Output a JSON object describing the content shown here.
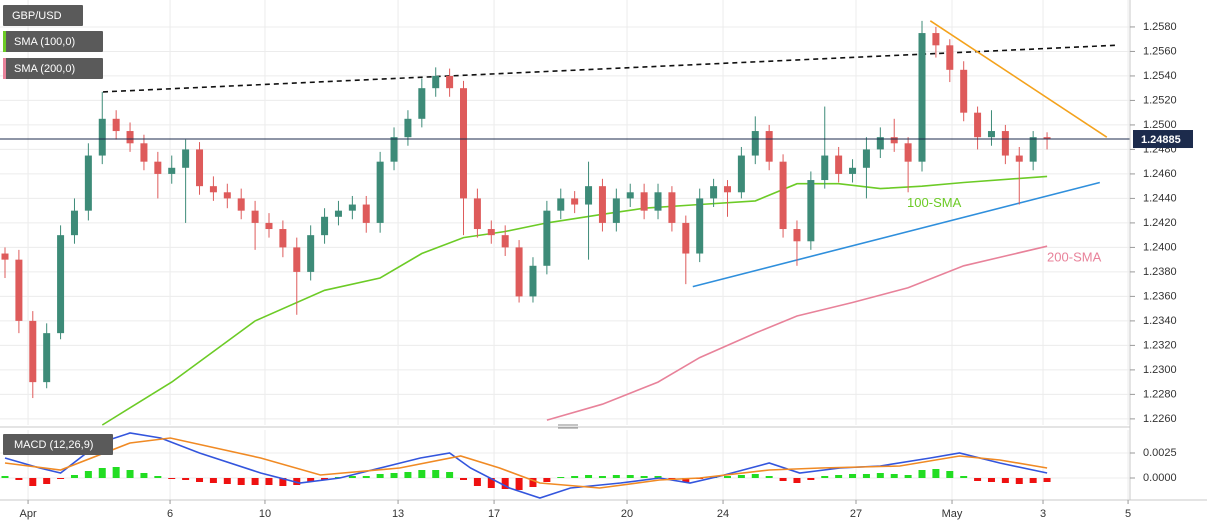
{
  "chart_data": [
    {
      "type": "candlestick",
      "name": "GBP/USD",
      "x": [
        0,
        1,
        2,
        3,
        4,
        5,
        6,
        7,
        8,
        9,
        10,
        11,
        12,
        13,
        14,
        15,
        16,
        17,
        18,
        19,
        20,
        21,
        22,
        23,
        24,
        25,
        26,
        27,
        28,
        29,
        30,
        31,
        32,
        33,
        34,
        35,
        36,
        37,
        38,
        39,
        40,
        41,
        42,
        43,
        44,
        45,
        46,
        47,
        48,
        49,
        50,
        51,
        52,
        53,
        54,
        55,
        56,
        57,
        58,
        59,
        60,
        61,
        62,
        63,
        64,
        65,
        66,
        67,
        68,
        69,
        70,
        71,
        72,
        73,
        74,
        75
      ],
      "open": [
        1.2395,
        1.239,
        1.234,
        1.229,
        1.233,
        1.241,
        1.243,
        1.2475,
        1.2505,
        1.2495,
        1.2485,
        1.247,
        1.246,
        1.2465,
        1.248,
        1.245,
        1.2445,
        1.244,
        1.243,
        1.242,
        1.2415,
        1.24,
        1.238,
        1.241,
        1.2425,
        1.243,
        1.2435,
        1.242,
        1.247,
        1.249,
        1.2505,
        1.253,
        1.254,
        1.253,
        1.244,
        1.2415,
        1.241,
        1.24,
        1.236,
        1.2385,
        1.243,
        1.244,
        1.2435,
        1.245,
        1.242,
        1.244,
        1.2445,
        1.243,
        1.2445,
        1.242,
        1.2395,
        1.244,
        1.245,
        1.2445,
        1.2475,
        1.2495,
        1.247,
        1.2415,
        1.2405,
        1.2455,
        1.2475,
        1.246,
        1.2465,
        1.248,
        1.249,
        1.2485,
        1.247,
        1.2575,
        1.2565,
        1.2545,
        1.251,
        1.249,
        1.2495,
        1.2475,
        1.247,
        1.249
      ],
      "high": [
        1.24,
        1.2398,
        1.2348,
        1.2338,
        1.2418,
        1.244,
        1.2485,
        1.2527,
        1.2512,
        1.2502,
        1.2492,
        1.2478,
        1.2475,
        1.2488,
        1.2486,
        1.2458,
        1.2452,
        1.2448,
        1.2438,
        1.2428,
        1.2422,
        1.2408,
        1.2418,
        1.2432,
        1.2438,
        1.2442,
        1.2442,
        1.2478,
        1.2498,
        1.2512,
        1.2538,
        1.2547,
        1.2546,
        1.2536,
        1.2448,
        1.2422,
        1.2418,
        1.2406,
        1.2392,
        1.2438,
        1.2448,
        1.2446,
        1.247,
        1.2456,
        1.2448,
        1.2452,
        1.2452,
        1.2452,
        1.245,
        1.2426,
        1.2448,
        1.2456,
        1.2455,
        1.2482,
        1.2507,
        1.25,
        1.2476,
        1.2422,
        1.2462,
        1.2515,
        1.2482,
        1.2472,
        1.249,
        1.2498,
        1.2505,
        1.249,
        1.2585,
        1.258,
        1.257,
        1.2552,
        1.2515,
        1.2512,
        1.25,
        1.2482,
        1.2495,
        1.2494
      ],
      "low": [
        1.2375,
        1.233,
        1.2277,
        1.2285,
        1.2325,
        1.2403,
        1.2422,
        1.2468,
        1.2488,
        1.2478,
        1.2463,
        1.244,
        1.2452,
        1.242,
        1.2443,
        1.2438,
        1.2432,
        1.2423,
        1.2398,
        1.2408,
        1.2392,
        1.2345,
        1.2373,
        1.2403,
        1.2418,
        1.2423,
        1.2412,
        1.2412,
        1.2463,
        1.2483,
        1.2498,
        1.2523,
        1.2523,
        1.241,
        1.2408,
        1.2403,
        1.2393,
        1.2355,
        1.2355,
        1.2378,
        1.2423,
        1.2428,
        1.239,
        1.2413,
        1.2413,
        1.2433,
        1.2423,
        1.2423,
        1.2413,
        1.237,
        1.2388,
        1.2433,
        1.2425,
        1.244,
        1.2468,
        1.2463,
        1.2408,
        1.2385,
        1.2398,
        1.2448,
        1.2453,
        1.2453,
        1.244,
        1.2473,
        1.2478,
        1.2445,
        1.2462,
        1.2555,
        1.2535,
        1.2503,
        1.248,
        1.2483,
        1.2468,
        1.2435,
        1.2463,
        1.248
      ],
      "close": [
        1.239,
        1.234,
        1.229,
        1.233,
        1.241,
        1.243,
        1.2475,
        1.2505,
        1.2495,
        1.2485,
        1.247,
        1.246,
        1.2465,
        1.248,
        1.245,
        1.2445,
        1.244,
        1.243,
        1.242,
        1.2415,
        1.24,
        1.238,
        1.241,
        1.2425,
        1.243,
        1.2435,
        1.242,
        1.247,
        1.249,
        1.2505,
        1.253,
        1.254,
        1.253,
        1.244,
        1.2415,
        1.241,
        1.24,
        1.236,
        1.2385,
        1.243,
        1.244,
        1.2435,
        1.245,
        1.242,
        1.244,
        1.2445,
        1.243,
        1.2445,
        1.242,
        1.2395,
        1.244,
        1.245,
        1.2445,
        1.2475,
        1.2495,
        1.247,
        1.2415,
        1.2405,
        1.2455,
        1.2475,
        1.246,
        1.2465,
        1.248,
        1.249,
        1.2485,
        1.247,
        1.2575,
        1.2565,
        1.2545,
        1.251,
        1.249,
        1.2495,
        1.2475,
        1.247,
        1.249,
        1.24885
      ],
      "up_color": "#3d8b78",
      "down_color": "#de5b5b",
      "series": [
        {
          "name": "SMA (100,0)",
          "label": "100-SMA",
          "color": "#6ccb26",
          "x": [
            7,
            12,
            18,
            23,
            27,
            30,
            33,
            36,
            39,
            43,
            46,
            50,
            54,
            57,
            60,
            63,
            66,
            69,
            75
          ],
          "values": [
            1.2255,
            1.229,
            1.234,
            1.2365,
            1.2375,
            1.2395,
            1.2408,
            1.2413,
            1.242,
            1.2427,
            1.2432,
            1.2435,
            1.2438,
            1.2452,
            1.2452,
            1.2448,
            1.245,
            1.2453,
            1.2458
          ]
        },
        {
          "name": "SMA (200,0)",
          "label": "200-SMA",
          "color": "#e8829a",
          "x": [
            39,
            43,
            47,
            50,
            54,
            57,
            61,
            65,
            69,
            72,
            75
          ],
          "values": [
            1.2259,
            1.2272,
            1.229,
            1.231,
            1.233,
            1.2344,
            1.2355,
            1.2367,
            1.2385,
            1.2393,
            1.2401
          ]
        }
      ],
      "trendlines": [
        {
          "color": "#111111",
          "dash": true,
          "x": [
            7.05,
            79.9
          ],
          "values": [
            1.2527,
            1.2565
          ]
        },
        {
          "color": "#f4a21c",
          "dash": false,
          "x": [
            66.6,
            79.3
          ],
          "values": [
            1.2585,
            1.249
          ]
        },
        {
          "color": "#2f8fdc",
          "dash": false,
          "x": [
            49.5,
            78.8
          ],
          "values": [
            1.2368,
            1.2453
          ]
        }
      ],
      "last_price": 1.24885,
      "last_color": "#1c2b4c",
      "xlim": [
        -0.36,
        80.97
      ],
      "xticks": [
        {
          "value": 1.66,
          "label": "Apr"
        },
        {
          "value": 11.88,
          "label": "6"
        },
        {
          "value": 18.71,
          "label": "10"
        },
        {
          "value": 28.29,
          "label": "13"
        },
        {
          "value": 35.2,
          "label": "17"
        },
        {
          "value": 44.77,
          "label": "20"
        },
        {
          "value": 51.68,
          "label": "24"
        },
        {
          "value": 61.25,
          "label": "27"
        },
        {
          "value": 68.16,
          "label": "May"
        },
        {
          "value": 74.71,
          "label": "3"
        },
        {
          "value": 80.83,
          "label": "5"
        }
      ],
      "ylim": [
        1.2255,
        1.2602
      ],
      "yticks": [
        {
          "value": 1.226,
          "label": "1.2260"
        },
        {
          "value": 1.228,
          "label": "1.2280"
        },
        {
          "value": 1.23,
          "label": "1.2300"
        },
        {
          "value": 1.232,
          "label": "1.2320"
        },
        {
          "value": 1.234,
          "label": "1.2340"
        },
        {
          "value": 1.236,
          "label": "1.2360"
        },
        {
          "value": 1.238,
          "label": "1.2380"
        },
        {
          "value": 1.24,
          "label": "1.2400"
        },
        {
          "value": 1.242,
          "label": "1.2420"
        },
        {
          "value": 1.244,
          "label": "1.2440"
        },
        {
          "value": 1.246,
          "label": "1.2460"
        },
        {
          "value": 1.248,
          "label": "1.2480"
        },
        {
          "value": 1.25,
          "label": "1.2500"
        },
        {
          "value": 1.252,
          "label": "1.2520"
        },
        {
          "value": 1.254,
          "label": "1.2540"
        },
        {
          "value": 1.256,
          "label": "1.2560"
        },
        {
          "value": 1.258,
          "label": "1.2580"
        }
      ],
      "grid": true
    },
    {
      "type": "macd",
      "name": "MACD (12,26,9)",
      "histogram": [
        0.0002,
        -0.0002,
        -0.0008,
        -0.0006,
        -0.0001,
        0.0003,
        0.0007,
        0.001,
        0.0011,
        0.0008,
        0.0005,
        0.0002,
        -0.0001,
        -0.0002,
        -0.0004,
        -0.0005,
        -0.0006,
        -0.0007,
        -0.0007,
        -0.0007,
        -0.0008,
        -0.0007,
        -0.0004,
        -0.0002,
        0.0001,
        0.0002,
        0.0002,
        0.0004,
        0.0005,
        0.0006,
        0.0008,
        0.0008,
        0.0006,
        -0.0002,
        -0.0008,
        -0.001,
        -0.0011,
        -0.0012,
        -0.0009,
        -0.0004,
        0.0001,
        0.0002,
        0.0003,
        0.0002,
        0.0003,
        0.0003,
        0.0002,
        0.0002,
        -0.0001,
        -0.0004,
        -0.0001,
        0.0001,
        0.0002,
        0.0003,
        0.0004,
        0.0002,
        -0.0003,
        -0.0005,
        -0.0002,
        0.0002,
        0.0003,
        0.0004,
        0.0004,
        0.0005,
        0.0004,
        0.0003,
        0.0008,
        0.0009,
        0.0007,
        0.0002,
        -0.0003,
        -0.0004,
        -0.0005,
        -0.0006,
        -0.0005,
        -0.0004
      ],
      "up_color": "#22dd22",
      "down_color": "#ee1111",
      "series": [
        {
          "color": "#3355dd",
          "x": [
            0,
            2.5,
            4,
            6.8,
            9,
            11.2,
            14,
            18.4,
            21.2,
            24.1,
            27,
            29.9,
            32,
            33.5,
            36.3,
            38.5,
            40.7,
            44.3,
            47.1,
            49.3,
            51.5,
            55,
            57.2,
            60.1,
            63,
            66.6,
            68.7,
            71.6,
            75
          ],
          "values": [
            0.002,
            0.001,
            0.0005,
            0.0035,
            0.0045,
            0.004,
            0.0025,
            0.0005,
            -0.0005,
            0.0,
            0.001,
            0.002,
            0.0025,
            0.001,
            -0.001,
            -0.002,
            -0.001,
            -0.0005,
            0.0,
            -0.0005,
            0.0002,
            0.0015,
            0.0005,
            0.001,
            0.0012,
            0.002,
            0.0025,
            0.0015,
            0.0005
          ]
        },
        {
          "color": "#f08a24",
          "x": [
            0,
            4,
            9,
            11.9,
            18.4,
            22.7,
            28.4,
            32.8,
            35.6,
            38.5,
            42.8,
            47.1,
            50,
            55,
            58.7,
            64.4,
            68.7,
            71.6,
            75
          ],
          "values": [
            0.0015,
            0.0008,
            0.0035,
            0.004,
            0.002,
            0.0003,
            0.001,
            0.0022,
            0.001,
            -0.0005,
            -0.001,
            -0.0002,
            0.0,
            0.0008,
            0.001,
            0.0012,
            0.0022,
            0.0018,
            0.001
          ]
        }
      ],
      "ylim": [
        -0.0022,
        0.0048
      ],
      "yticks": [
        {
          "value": 0,
          "label": "0.0000"
        },
        {
          "value": 0.0025,
          "label": "0.0025"
        }
      ]
    }
  ]
}
